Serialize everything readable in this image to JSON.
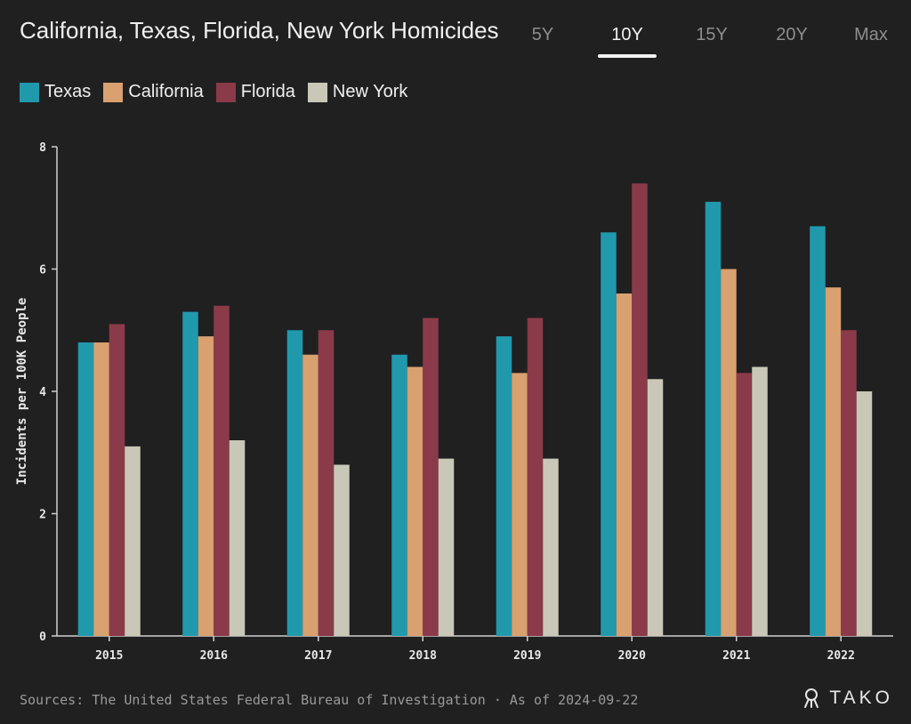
{
  "title": "California, Texas, Florida, New York Homicides",
  "tabs": [
    {
      "label": "5Y",
      "active": false
    },
    {
      "label": "10Y",
      "active": true
    },
    {
      "label": "15Y",
      "active": false
    },
    {
      "label": "20Y",
      "active": false
    },
    {
      "label": "Max",
      "active": false
    }
  ],
  "source": "Sources: The United States Federal Bureau of Investigation · As of 2024-09-22",
  "brand": "TAKO",
  "chart_data": {
    "type": "bar",
    "title": "California, Texas, Florida, New York Homicides",
    "ylabel": "Incidents per 100K People",
    "xlabel": "",
    "ylim": [
      0,
      8
    ],
    "yticks": [
      0,
      2,
      4,
      6,
      8
    ],
    "categories": [
      "2015",
      "2016",
      "2017",
      "2018",
      "2019",
      "2020",
      "2021",
      "2022"
    ],
    "legend_position": "top-left",
    "grid": false,
    "series": [
      {
        "name": "Texas",
        "color": "#2199ad",
        "values": [
          4.8,
          5.3,
          5.0,
          4.6,
          4.9,
          6.6,
          7.1,
          6.7
        ]
      },
      {
        "name": "California",
        "color": "#d9a070",
        "values": [
          4.8,
          4.9,
          4.6,
          4.4,
          4.3,
          5.6,
          6.0,
          5.7
        ]
      },
      {
        "name": "Florida",
        "color": "#8b3a4a",
        "values": [
          5.1,
          5.4,
          5.0,
          5.2,
          5.2,
          7.4,
          4.3,
          5.0
        ]
      },
      {
        "name": "New York",
        "color": "#c9c8b8",
        "values": [
          3.1,
          3.2,
          2.8,
          2.9,
          2.9,
          4.2,
          4.4,
          4.0
        ]
      }
    ]
  }
}
